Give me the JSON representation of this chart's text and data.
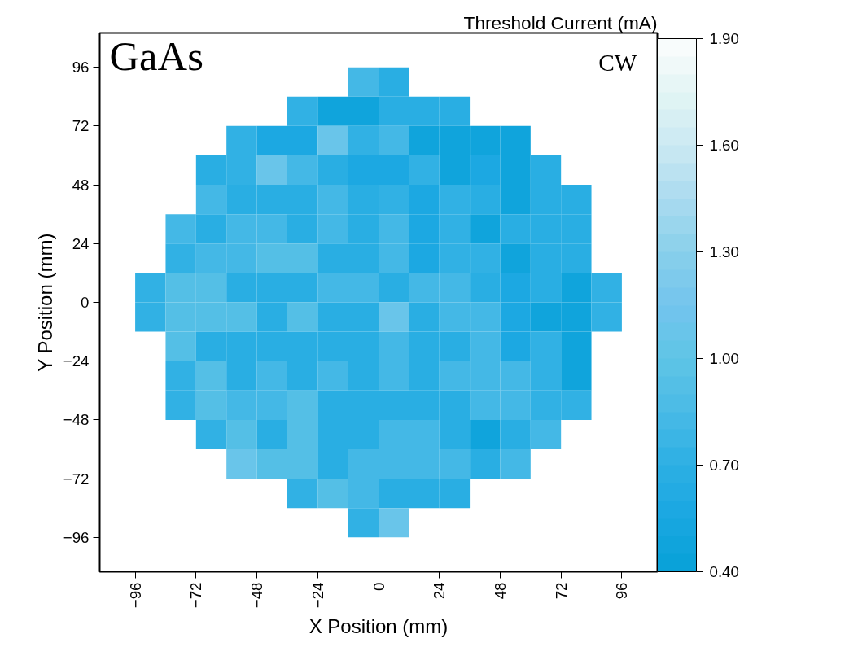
{
  "chart_data": {
    "type": "scatter",
    "marker": "square",
    "xlabel": "X Position (mm)",
    "ylabel": "Y Position (mm)",
    "clabel": "Threshold Current (mA)",
    "annotations": [
      "GaAs",
      "CW"
    ],
    "xlim": [
      -110,
      110
    ],
    "ylim": [
      -110,
      110
    ],
    "xticks": [
      {
        "value": -96,
        "label": "−96"
      },
      {
        "value": -72,
        "label": "−72"
      },
      {
        "value": -48,
        "label": "−48"
      },
      {
        "value": -24,
        "label": "−24"
      },
      0,
      24,
      48,
      72,
      96
    ],
    "yticks": [
      {
        "value": -96,
        "label": "−96"
      },
      {
        "value": -72,
        "label": "−72"
      },
      {
        "value": -48,
        "label": "−48"
      },
      {
        "value": -24,
        "label": "−24"
      },
      0,
      24,
      48,
      72,
      96
    ],
    "clim": [
      0.4,
      1.9
    ],
    "cticks": [
      {
        "value": 0.4,
        "label": "0.40"
      },
      {
        "value": 0.7,
        "label": "0.70"
      },
      {
        "value": 1.0,
        "label": "1.00"
      },
      {
        "value": 1.3,
        "label": "1.30"
      },
      {
        "value": 1.6,
        "label": "1.60"
      },
      {
        "value": 1.9,
        "label": "1.90"
      }
    ],
    "grid": false,
    "x": [
      -6,
      6,
      -30,
      -18,
      -6,
      6,
      18,
      30,
      -54,
      -42,
      -30,
      -18,
      -6,
      6,
      18,
      30,
      42,
      54,
      -66,
      -54,
      -42,
      -30,
      -18,
      -6,
      6,
      18,
      30,
      42,
      54,
      66,
      -66,
      -54,
      -42,
      -30,
      -18,
      -6,
      6,
      18,
      30,
      42,
      54,
      66,
      78,
      -78,
      -66,
      -54,
      -42,
      -30,
      -18,
      -6,
      6,
      18,
      30,
      42,
      54,
      66,
      78,
      -78,
      -66,
      -54,
      -42,
      -30,
      -18,
      -6,
      6,
      18,
      30,
      42,
      54,
      66,
      78,
      -90,
      -78,
      -66,
      -54,
      -42,
      -30,
      -18,
      -6,
      6,
      18,
      30,
      42,
      54,
      66,
      78,
      90,
      -90,
      -78,
      -66,
      -54,
      -42,
      -30,
      -18,
      -6,
      6,
      18,
      30,
      42,
      54,
      66,
      78,
      90,
      -78,
      -66,
      -54,
      -42,
      -30,
      -18,
      -6,
      6,
      18,
      30,
      42,
      54,
      66,
      78,
      -78,
      -66,
      -54,
      -42,
      -30,
      -18,
      -6,
      6,
      18,
      30,
      42,
      54,
      66,
      78,
      -78,
      -66,
      -54,
      -42,
      -30,
      -18,
      -6,
      6,
      18,
      30,
      42,
      54,
      66,
      78,
      -66,
      -54,
      -42,
      -30,
      -18,
      -6,
      6,
      18,
      30,
      42,
      54,
      66,
      -54,
      -42,
      -30,
      -18,
      -6,
      6,
      18,
      30,
      42,
      54,
      -30,
      -18,
      -6,
      6,
      18,
      30,
      -6,
      6
    ],
    "values": [
      90,
      90,
      78,
      78,
      78,
      78,
      78,
      78,
      66,
      66,
      66,
      66,
      66,
      66,
      66,
      66,
      66,
      66,
      54,
      54,
      54,
      54,
      54,
      54,
      54,
      54,
      54,
      54,
      54,
      54,
      42,
      42,
      42,
      42,
      42,
      42,
      42,
      42,
      42,
      42,
      42,
      42,
      42,
      30,
      30,
      30,
      30,
      30,
      30,
      30,
      30,
      30,
      30,
      30,
      30,
      30,
      30,
      18,
      18,
      18,
      18,
      18,
      18,
      18,
      18,
      18,
      18,
      18,
      18,
      18,
      18,
      6,
      6,
      6,
      6,
      6,
      6,
      6,
      6,
      6,
      6,
      6,
      6,
      6,
      6,
      6,
      6,
      -6,
      -6,
      -6,
      -6,
      -6,
      -6,
      -6,
      -6,
      -6,
      -6,
      -6,
      -6,
      -6,
      -6,
      -6,
      -6,
      -18,
      -18,
      -18,
      -18,
      -18,
      -18,
      -18,
      -18,
      -18,
      -18,
      -18,
      -18,
      -18,
      -18,
      -30,
      -30,
      -30,
      -30,
      -30,
      -30,
      -30,
      -30,
      -30,
      -30,
      -30,
      -30,
      -30,
      -30,
      -42,
      -42,
      -42,
      -42,
      -42,
      -42,
      -42,
      -42,
      -42,
      -42,
      -42,
      -42,
      -42,
      -42,
      -54,
      -54,
      -54,
      -54,
      -54,
      -54,
      -54,
      -54,
      -54,
      -54,
      -54,
      -54,
      -66,
      -66,
      -66,
      -66,
      -66,
      -66,
      -66,
      -66,
      -66,
      -66,
      -78,
      -78,
      -78,
      -78,
      -78,
      -78,
      -90,
      -90
    ],
    "cvalues": [
      0.8,
      0.65,
      0.75,
      0.5,
      0.5,
      0.7,
      0.7,
      0.7,
      0.75,
      0.6,
      0.6,
      1.05,
      0.75,
      0.8,
      0.5,
      0.5,
      0.5,
      0.5,
      0.65,
      0.75,
      1.05,
      0.85,
      0.65,
      0.6,
      0.6,
      0.75,
      0.5,
      0.6,
      0.5,
      0.7,
      0.8,
      0.65,
      0.65,
      0.65,
      0.85,
      0.65,
      0.75,
      0.6,
      0.75,
      0.7,
      0.5,
      0.7,
      0.7,
      0.8,
      0.7,
      0.85,
      0.85,
      0.65,
      0.85,
      0.65,
      0.8,
      0.6,
      0.75,
      0.5,
      0.7,
      0.7,
      0.7,
      0.75,
      0.85,
      0.85,
      0.95,
      0.95,
      0.65,
      0.65,
      0.85,
      0.6,
      0.75,
      0.75,
      0.5,
      0.7,
      0.7,
      0.75,
      0.95,
      0.95,
      0.7,
      0.7,
      0.7,
      0.85,
      0.85,
      0.65,
      0.8,
      0.8,
      0.65,
      0.6,
      0.7,
      0.5,
      0.75,
      0.75,
      0.95,
      0.95,
      0.95,
      0.7,
      0.95,
      0.7,
      0.7,
      1.05,
      0.65,
      0.8,
      0.8,
      0.6,
      0.5,
      0.5,
      0.75,
      0.95,
      0.7,
      0.7,
      0.7,
      0.7,
      0.7,
      0.65,
      0.85,
      0.65,
      0.65,
      0.8,
      0.6,
      0.75,
      0.5,
      0.75,
      0.95,
      0.7,
      0.85,
      0.7,
      0.85,
      0.65,
      0.85,
      0.65,
      0.8,
      0.8,
      0.8,
      0.75,
      0.5,
      0.75,
      0.95,
      0.85,
      0.85,
      0.95,
      0.7,
      0.65,
      0.65,
      0.65,
      0.65,
      0.8,
      0.8,
      0.75,
      0.75,
      0.75,
      0.95,
      0.65,
      0.95,
      0.7,
      0.65,
      0.85,
      0.85,
      0.65,
      0.5,
      0.65,
      0.85,
      1.05,
      0.95,
      0.95,
      0.7,
      0.85,
      0.85,
      0.85,
      0.85,
      0.65,
      0.85,
      0.75,
      0.95,
      0.85,
      0.65,
      0.65,
      0.65,
      0.75,
      1.05
    ]
  }
}
